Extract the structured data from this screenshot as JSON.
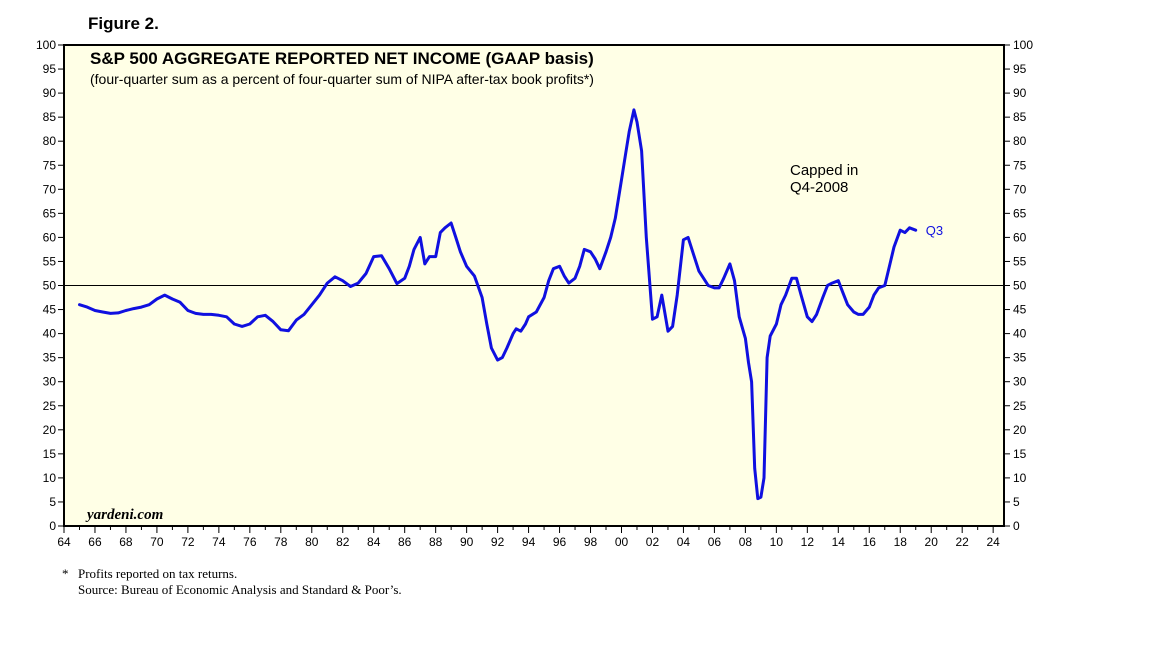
{
  "figure_label": "Figure 2.",
  "colors": {
    "plot_bg": "#ffffe6",
    "series": "#1010e0",
    "axis": "#000000",
    "text": "#000000"
  },
  "footnote": {
    "marker": "*",
    "line1": "Profits reported on tax returns.",
    "line2": "Source: Bureau of Economic Analysis and Standard & Poor’s."
  },
  "chart_data": {
    "type": "line",
    "title": "S&P 500 AGGREGATE REPORTED NET INCOME (GAAP basis)",
    "subtitle": "(four-quarter sum as a percent of four-quarter sum of NIPA after-tax book profits*)",
    "watermark": "yardeni.com",
    "annotation": {
      "line1": "Capped in",
      "line2": "Q4-2008"
    },
    "end_label": "Q3",
    "xlim": [
      1964,
      2024.7
    ],
    "ylim": [
      0,
      100
    ],
    "x_tick_labels": [
      "64",
      "66",
      "68",
      "70",
      "72",
      "74",
      "76",
      "78",
      "80",
      "82",
      "84",
      "86",
      "88",
      "90",
      "92",
      "94",
      "96",
      "98",
      "00",
      "02",
      "04",
      "06",
      "08",
      "10",
      "12",
      "14",
      "16",
      "18",
      "20",
      "22",
      "24"
    ],
    "y_tick_labels": [
      "0",
      "5",
      "10",
      "15",
      "20",
      "25",
      "30",
      "35",
      "40",
      "45",
      "50",
      "55",
      "60",
      "65",
      "70",
      "75",
      "80",
      "85",
      "90",
      "95",
      "100"
    ],
    "reference_line": 50,
    "series": [
      {
        "name": "S&P 500 net income as % of NIPA after-tax book profits",
        "x": [
          1965.0,
          1965.5,
          1966.0,
          1966.5,
          1967.0,
          1967.5,
          1968.0,
          1968.5,
          1969.0,
          1969.5,
          1970.0,
          1970.5,
          1971.0,
          1971.5,
          1972.0,
          1972.5,
          1973.0,
          1973.5,
          1974.0,
          1974.5,
          1975.0,
          1975.5,
          1976.0,
          1976.5,
          1977.0,
          1977.5,
          1978.0,
          1978.5,
          1979.0,
          1979.5,
          1980.0,
          1980.5,
          1981.0,
          1981.5,
          1982.0,
          1982.5,
          1983.0,
          1983.5,
          1984.0,
          1984.5,
          1985.0,
          1985.5,
          1986.0,
          1986.3,
          1986.6,
          1987.0,
          1987.3,
          1987.6,
          1988.0,
          1988.3,
          1988.6,
          1989.0,
          1989.3,
          1989.6,
          1990.0,
          1990.5,
          1991.0,
          1991.3,
          1991.6,
          1992.0,
          1992.3,
          1992.6,
          1993.0,
          1993.2,
          1993.5,
          1993.8,
          1994.0,
          1994.5,
          1995.0,
          1995.3,
          1995.6,
          1996.0,
          1996.3,
          1996.6,
          1997.0,
          1997.3,
          1997.6,
          1998.0,
          1998.3,
          1998.6,
          1999.0,
          1999.3,
          1999.6,
          2000.0,
          2000.3,
          2000.5,
          2000.8,
          2001.0,
          2001.3,
          2001.6,
          2002.0,
          2002.3,
          2002.6,
          2003.0,
          2003.3,
          2003.6,
          2004.0,
          2004.3,
          2004.6,
          2005.0,
          2005.3,
          2005.6,
          2006.0,
          2006.3,
          2006.6,
          2007.0,
          2007.3,
          2007.6,
          2008.0,
          2008.2,
          2008.4,
          2008.6,
          2008.8,
          2009.0,
          2009.2,
          2009.4,
          2009.6,
          2010.0,
          2010.3,
          2010.6,
          2011.0,
          2011.3,
          2011.6,
          2012.0,
          2012.3,
          2012.6,
          2013.0,
          2013.3,
          2013.6,
          2014.0,
          2014.3,
          2014.6,
          2015.0,
          2015.3,
          2015.6,
          2016.0,
          2016.3,
          2016.6,
          2017.0,
          2017.3,
          2017.6,
          2018.0,
          2018.3,
          2018.6,
          2019.0
        ],
        "y": [
          46,
          45.5,
          44.8,
          44.5,
          44.2,
          44.3,
          44.8,
          45.2,
          45.5,
          46,
          47.2,
          48,
          47.2,
          46.5,
          44.8,
          44.2,
          44,
          44,
          43.8,
          43.5,
          42,
          41.5,
          42,
          43.5,
          43.8,
          42.5,
          40.8,
          40.6,
          42.8,
          44,
          46,
          48,
          50.5,
          51.8,
          51,
          49.8,
          50.5,
          52.5,
          56,
          56.2,
          53.5,
          50.4,
          51.5,
          54,
          57.5,
          60,
          54.5,
          56,
          56,
          61,
          62,
          63,
          60,
          57,
          54,
          52,
          47.5,
          42,
          37,
          34.5,
          35,
          37,
          40,
          41,
          40.5,
          42,
          43.5,
          44.5,
          47.5,
          51,
          53.5,
          54,
          52,
          50.5,
          51.5,
          54,
          57.5,
          57,
          55.5,
          53.5,
          57,
          60,
          64,
          72,
          78,
          82,
          86.5,
          84,
          78,
          60,
          43,
          43.5,
          48,
          40.5,
          41.5,
          48,
          59.5,
          60,
          57,
          53,
          51.5,
          50,
          49.5,
          49.5,
          51.5,
          54.5,
          51,
          43.5,
          39,
          34,
          30,
          12,
          5.7,
          6,
          10,
          35,
          39.5,
          42,
          46,
          48,
          51.5,
          51.5,
          48,
          43.5,
          42.5,
          44,
          47.5,
          50,
          50.5,
          51,
          48.5,
          46,
          44.5,
          44,
          44,
          45.5,
          48,
          49.5,
          50,
          54,
          58,
          61.5,
          61,
          62,
          61.5
        ]
      }
    ]
  }
}
